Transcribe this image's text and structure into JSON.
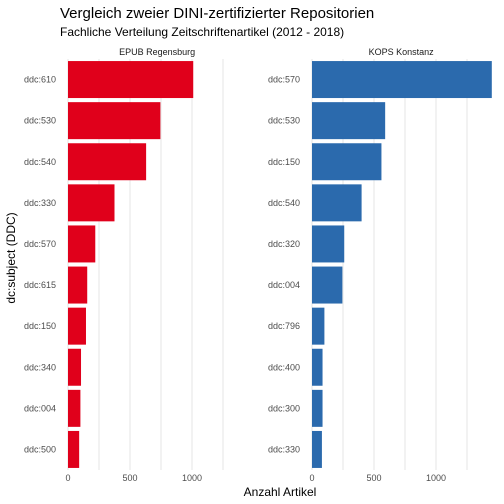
{
  "chart_data": {
    "type": "bar",
    "orientation": "horizontal",
    "title": "Vergleich zweier DINI-zertifizierter Repositorien",
    "subtitle": "Fachliche Verteilung Zeitschriftenartikel (2012 - 2018)",
    "xlabel": "Anzahl Artikel",
    "ylabel": "dc:subject (DDC)",
    "xlim": [
      0,
      1470
    ],
    "xticks": [
      0,
      500,
      1000
    ],
    "grid": true,
    "panels": [
      {
        "name": "EPUB Regensburg",
        "color": "#e0001b",
        "categories": [
          "ddc:610",
          "ddc:530",
          "ddc:540",
          "ddc:330",
          "ddc:570",
          "ddc:615",
          "ddc:150",
          "ddc:340",
          "ddc:004",
          "ddc:500"
        ],
        "values": [
          1010,
          745,
          630,
          375,
          220,
          155,
          145,
          105,
          100,
          90
        ]
      },
      {
        "name": "KOPS Konstanz",
        "color": "#2b6aad",
        "categories": [
          "ddc:570",
          "ddc:530",
          "ddc:150",
          "ddc:540",
          "ddc:320",
          "ddc:004",
          "ddc:796",
          "ddc:400",
          "ddc:300",
          "ddc:330"
        ],
        "values": [
          1450,
          590,
          560,
          400,
          260,
          245,
          100,
          85,
          85,
          80
        ]
      }
    ]
  }
}
